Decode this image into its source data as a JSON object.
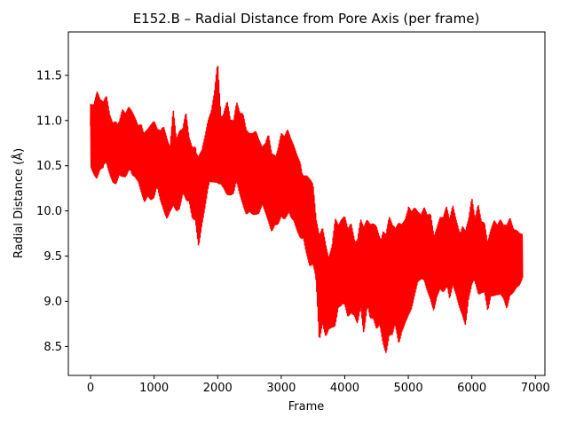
{
  "chart_data": {
    "type": "line",
    "title": "E152.B – Radial Distance from Pore Axis (per frame)",
    "xlabel": "Frame",
    "ylabel": "Radial Distance (Å)",
    "xlim": [
      -350,
      7150
    ],
    "ylim": [
      8.18,
      11.98
    ],
    "xticks": [
      0,
      1000,
      2000,
      3000,
      4000,
      5000,
      6000,
      7000
    ],
    "xtick_labels": [
      "0",
      "1000",
      "2000",
      "3000",
      "4000",
      "5000",
      "6000",
      "7000"
    ],
    "yticks": [
      8.5,
      9.0,
      9.5,
      10.0,
      10.5,
      11.0,
      11.5
    ],
    "ytick_labels": [
      "8.5",
      "9.0",
      "9.5",
      "10.0",
      "10.5",
      "11.0",
      "11.5"
    ],
    "grid": false,
    "series": [
      {
        "color": "#ff0000",
        "x": [
          0,
          50,
          100,
          150,
          200,
          250,
          300,
          350,
          400,
          450,
          500,
          550,
          600,
          650,
          700,
          750,
          800,
          850,
          900,
          950,
          1000,
          1050,
          1100,
          1150,
          1200,
          1250,
          1300,
          1350,
          1400,
          1450,
          1500,
          1550,
          1600,
          1650,
          1700,
          1750,
          1800,
          1850,
          1900,
          1950,
          2000,
          2050,
          2100,
          2150,
          2200,
          2250,
          2300,
          2350,
          2400,
          2450,
          2500,
          2550,
          2600,
          2650,
          2700,
          2750,
          2800,
          2850,
          2900,
          2950,
          3000,
          3050,
          3100,
          3150,
          3200,
          3250,
          3300,
          3350,
          3400,
          3450,
          3500,
          3550,
          3600,
          3650,
          3700,
          3750,
          3800,
          3850,
          3900,
          3950,
          4000,
          4050,
          4100,
          4150,
          4200,
          4250,
          4300,
          4350,
          4400,
          4450,
          4500,
          4550,
          4600,
          4650,
          4700,
          4750,
          4800,
          4850,
          4900,
          4950,
          5000,
          5050,
          5100,
          5150,
          5200,
          5250,
          5300,
          5350,
          5400,
          5450,
          5500,
          5550,
          5600,
          5650,
          5700,
          5750,
          5800,
          5850,
          5900,
          5950,
          6000,
          6050,
          6100,
          6150,
          6200,
          6250,
          6300,
          6350,
          6400,
          6450,
          6500,
          6550,
          6600,
          6650,
          6700,
          6750,
          6800
        ],
        "upper": [
          11.38,
          11.3,
          11.4,
          11.25,
          11.2,
          11.28,
          11.1,
          11.05,
          11.15,
          11.1,
          11.2,
          11.1,
          11.15,
          11.1,
          11.05,
          11.0,
          11.1,
          11.05,
          11.0,
          11.0,
          11.0,
          10.9,
          10.9,
          11.0,
          10.95,
          10.9,
          11.3,
          10.85,
          10.9,
          10.9,
          11.1,
          10.85,
          10.8,
          10.9,
          10.8,
          10.75,
          10.85,
          11.0,
          11.1,
          11.35,
          11.78,
          11.2,
          11.3,
          11.35,
          11.05,
          11.0,
          11.2,
          11.1,
          11.15,
          11.05,
          11.1,
          11.0,
          10.95,
          10.8,
          10.7,
          10.75,
          10.9,
          10.75,
          10.8,
          10.85,
          10.95,
          10.85,
          10.9,
          10.8,
          10.75,
          10.7,
          10.7,
          10.55,
          10.5,
          10.4,
          10.3,
          9.9,
          9.75,
          9.9,
          9.8,
          9.7,
          9.75,
          10.0,
          9.85,
          9.9,
          9.95,
          9.85,
          10.0,
          9.9,
          9.85,
          10.0,
          9.85,
          9.9,
          9.85,
          9.9,
          9.95,
          9.9,
          10.05,
          9.9,
          10.0,
          9.85,
          9.8,
          9.9,
          9.95,
          10.1,
          10.37,
          10.15,
          10.1,
          10.0,
          9.95,
          10.05,
          10.0,
          10.1,
          9.95,
          9.95,
          10.0,
          9.95,
          10.05,
          9.9,
          10.1,
          10.0,
          9.95,
          10.05,
          9.9,
          9.95,
          10.15,
          9.9,
          10.1,
          9.95,
          10.0,
          9.85,
          9.9,
          9.95,
          9.85,
          9.9,
          9.85,
          9.9,
          10.05,
          10.0,
          9.9,
          9.8,
          9.75
        ],
        "lower": [
          10.5,
          10.4,
          10.3,
          10.35,
          10.3,
          10.4,
          10.35,
          10.3,
          10.3,
          10.4,
          10.35,
          10.3,
          10.3,
          10.25,
          10.3,
          10.3,
          10.2,
          10.1,
          10.15,
          10.05,
          10.0,
          10.1,
          10.0,
          9.95,
          9.9,
          10.0,
          10.05,
          9.95,
          9.9,
          10.0,
          9.95,
          10.05,
          9.9,
          9.9,
          9.6,
          9.8,
          9.95,
          10.1,
          10.15,
          10.2,
          10.25,
          10.3,
          10.25,
          10.15,
          10.1,
          10.05,
          10.1,
          10.05,
          10.0,
          9.95,
          10.0,
          9.95,
          9.9,
          9.85,
          9.9,
          9.85,
          9.8,
          9.75,
          9.85,
          9.85,
          9.9,
          9.8,
          9.75,
          9.75,
          9.8,
          9.75,
          9.7,
          9.7,
          9.5,
          9.3,
          9.25,
          9.05,
          8.4,
          8.7,
          8.6,
          8.7,
          8.7,
          8.65,
          8.8,
          8.7,
          8.8,
          8.75,
          8.85,
          8.85,
          8.75,
          8.9,
          8.5,
          8.7,
          8.6,
          8.7,
          8.65,
          8.75,
          8.55,
          8.38,
          8.5,
          8.4,
          8.45,
          8.35,
          8.6,
          8.75,
          8.85,
          8.9,
          9.0,
          9.1,
          9.05,
          9.1,
          9.05,
          9.0,
          8.9,
          9.05,
          9.1,
          9.0,
          8.95,
          8.85,
          9.1,
          9.05,
          8.95,
          8.85,
          8.7,
          8.95,
          9.0,
          9.05,
          8.95,
          9.05,
          9.1,
          8.9,
          9.05,
          9.0,
          8.95,
          8.85,
          8.9,
          8.85,
          9.05,
          9.1,
          9.15,
          9.15,
          9.2
        ]
      }
    ]
  }
}
